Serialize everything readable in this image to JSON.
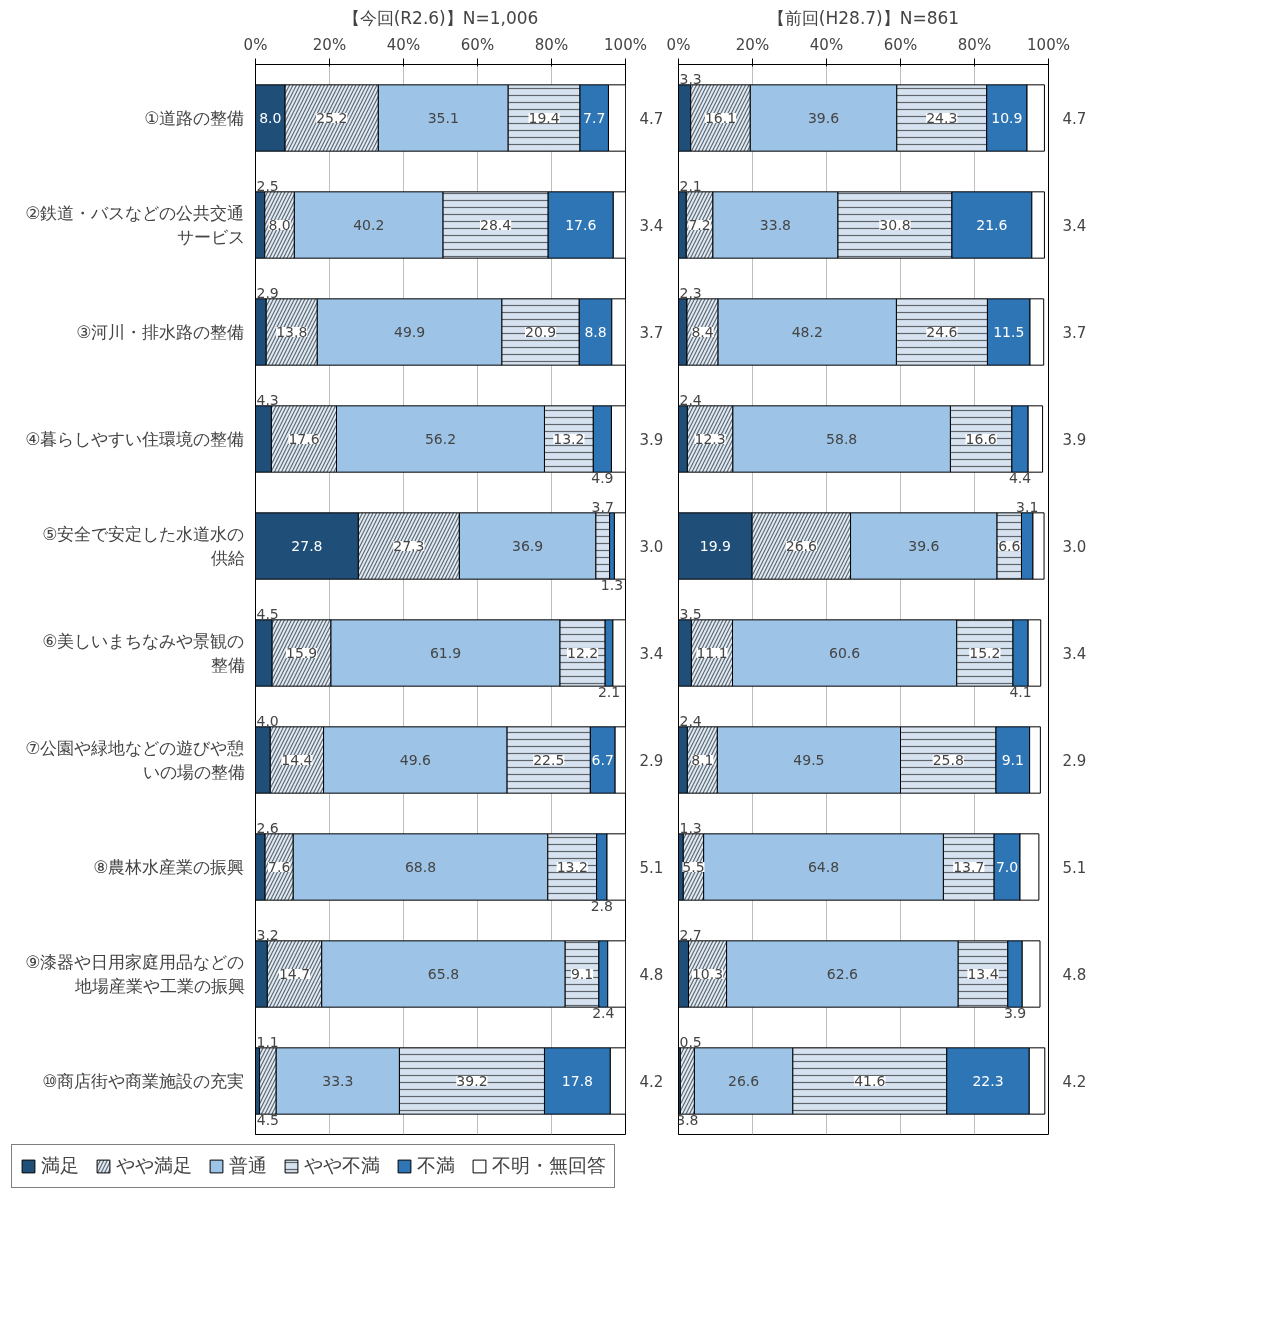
{
  "chart_data": [
    {
      "type": "bar",
      "orientation": "horizontal",
      "stacked": true,
      "title": "【今回(R2.6)】N=1,006",
      "categories": [
        "①道路の整備",
        "②鉄道・バスなどの公共交通サービス",
        "③河川・排水路の整備",
        "④暮らしやすい住環境の整備",
        "⑤安全で安定した水道水の供給",
        "⑥美しいまちなみや景観の整備",
        "⑦公園や緑地などの遊びや憩いの場の整備",
        "⑧農林水産業の振興",
        "⑨漆器や日用家庭用品などの地場産業や工業の振興",
        "⑩商店街や商業施設の充実"
      ],
      "series": [
        {
          "name": "満足",
          "color": "#1f4e79",
          "values": [
            8.0,
            2.5,
            2.9,
            4.3,
            27.8,
            4.5,
            4.0,
            2.6,
            3.2,
            1.1
          ],
          "value_labels": [
            "8.0",
            "2.5",
            "2.9",
            "4.3",
            "27.8",
            "4.5",
            "4.0",
            "2.6",
            "3.2",
            "1.1"
          ]
        },
        {
          "name": "やや満足",
          "color": "#deebf7",
          "values": [
            25.2,
            8.0,
            13.8,
            17.6,
            27.3,
            15.9,
            14.4,
            7.6,
            14.7,
            4.5
          ],
          "value_labels": [
            "25.2",
            "8.0",
            "13.8",
            "17.6",
            "27.3",
            "15.9",
            "14.4",
            "7.6",
            "14.7",
            "4.5"
          ]
        },
        {
          "name": "普通",
          "color": "#9dc3e6",
          "values": [
            35.1,
            40.2,
            49.9,
            56.2,
            36.9,
            61.9,
            49.6,
            68.8,
            65.8,
            33.3
          ],
          "value_labels": [
            "35.1",
            "40.2",
            "49.9",
            "56.2",
            "36.9",
            "61.9",
            "49.6",
            "68.8",
            "65.8",
            "33.3"
          ]
        },
        {
          "name": "やや不満",
          "color": "#d6e2f0",
          "values": [
            19.4,
            28.4,
            20.9,
            13.2,
            3.7,
            12.2,
            22.5,
            13.2,
            9.1,
            39.2
          ],
          "value_labels": [
            "19.4",
            "28.4",
            "20.9",
            "13.2",
            "3.7",
            "12.2",
            "22.5",
            "13.2",
            "9.1",
            "39.2"
          ]
        },
        {
          "name": "不満",
          "color": "#2e75b6",
          "values": [
            7.7,
            17.6,
            8.8,
            4.9,
            1.3,
            2.1,
            6.7,
            2.8,
            2.4,
            17.8
          ],
          "value_labels": [
            "7.7",
            "17.6",
            "8.8",
            "4.9",
            "1.3",
            "2.1",
            "6.7",
            "2.8",
            "2.4",
            "17.8"
          ]
        },
        {
          "name": "不明・無回答",
          "color": "#ffffff",
          "values": [
            4.7,
            3.4,
            3.7,
            3.9,
            3.0,
            3.4,
            2.9,
            5.1,
            4.8,
            4.2
          ],
          "value_labels": [
            "4.7",
            "3.4",
            "3.7",
            "3.9",
            "3.0",
            "3.4",
            "2.9",
            "5.1",
            "4.8",
            "4.2"
          ]
        }
      ],
      "xlim": [
        0,
        100
      ],
      "xticks": [
        {
          "value": 0,
          "label": "0%"
        },
        {
          "value": 20,
          "label": "20%"
        },
        {
          "value": 40,
          "label": "40%"
        },
        {
          "value": 60,
          "label": "60%"
        },
        {
          "value": 80,
          "label": "80%"
        },
        {
          "value": 100,
          "label": "100%"
        }
      ],
      "grid": "x",
      "legend": "bottom"
    },
    {
      "type": "bar",
      "orientation": "horizontal",
      "stacked": true,
      "title": "【前回(H28.7)】N=861",
      "categories": [
        "①道路の整備",
        "②鉄道・バスなどの公共交通サービス",
        "③河川・排水路の整備",
        "④暮らしやすい住環境の整備",
        "⑤安全で安定した水道水の供給",
        "⑥美しいまちなみや景観の整備",
        "⑦公園や緑地などの遊びや憩いの場の整備",
        "⑧農林水産業の振興",
        "⑨漆器や日用家庭用品などの地場産業や工業の振興",
        "⑩商店街や商業施設の充実"
      ],
      "series": [
        {
          "color": "#1f4e79",
          "values": [
            3.3,
            2.1,
            2.3,
            2.4,
            19.9,
            3.5,
            2.4,
            1.3,
            2.7,
            0.5
          ],
          "value_labels": [
            "3.3",
            "2.1",
            "2.3",
            "2.4",
            "19.9",
            "3.5",
            "2.4",
            "1.3",
            "2.7",
            "0.5"
          ]
        },
        {
          "color": "#deebf7",
          "values": [
            16.1,
            7.2,
            8.4,
            12.3,
            26.6,
            11.1,
            8.1,
            5.5,
            10.3,
            3.8
          ],
          "value_labels": [
            "16.1",
            "7.2",
            "8.4",
            "12.3",
            "26.6",
            "11.1",
            "8.1",
            "5.5",
            "10.3",
            "3.8"
          ]
        },
        {
          "color": "#9dc3e6",
          "values": [
            39.6,
            33.8,
            48.2,
            58.8,
            39.6,
            60.6,
            49.5,
            64.8,
            62.6,
            26.6
          ],
          "value_labels": [
            "39.6",
            "33.8",
            "48.2",
            "58.8",
            "39.6",
            "60.6",
            "49.5",
            "64.8",
            "62.6",
            "26.6"
          ]
        },
        {
          "color": "#d6e2f0",
          "values": [
            24.3,
            30.8,
            24.6,
            16.6,
            6.6,
            15.2,
            25.8,
            13.7,
            13.4,
            41.6
          ],
          "value_labels": [
            "24.3",
            "30.8",
            "24.6",
            "16.6",
            "6.6",
            "15.2",
            "25.8",
            "13.7",
            "13.4",
            "41.6"
          ]
        },
        {
          "color": "#2e75b6",
          "values": [
            10.9,
            21.6,
            11.5,
            4.4,
            3.1,
            4.1,
            9.1,
            7.0,
            3.9,
            22.3
          ],
          "value_labels": [
            "10.9",
            "21.6",
            "11.5",
            "4.4",
            "3.1",
            "4.1",
            "9.1",
            "7.0",
            "3.9",
            "22.3"
          ]
        },
        {
          "color": "#ffffff",
          "values": [
            4.7,
            3.4,
            3.7,
            3.9,
            3.0,
            3.4,
            2.9,
            5.1,
            4.8,
            4.2
          ],
          "value_labels": [
            "4.7",
            "3.4",
            "3.7",
            "3.9",
            "3.0",
            "3.4",
            "2.9",
            "5.1",
            "4.8",
            "4.2"
          ]
        }
      ],
      "xlim": [
        0,
        100
      ],
      "xticks": [
        {
          "value": 0,
          "label": "0%"
        },
        {
          "value": 20,
          "label": "20%"
        },
        {
          "value": 40,
          "label": "40%"
        },
        {
          "value": 60,
          "label": "60%"
        },
        {
          "value": 80,
          "label": "80%"
        },
        {
          "value": 100,
          "label": "100%"
        }
      ],
      "grid": "x",
      "tick_labels": "x"
    }
  ]
}
